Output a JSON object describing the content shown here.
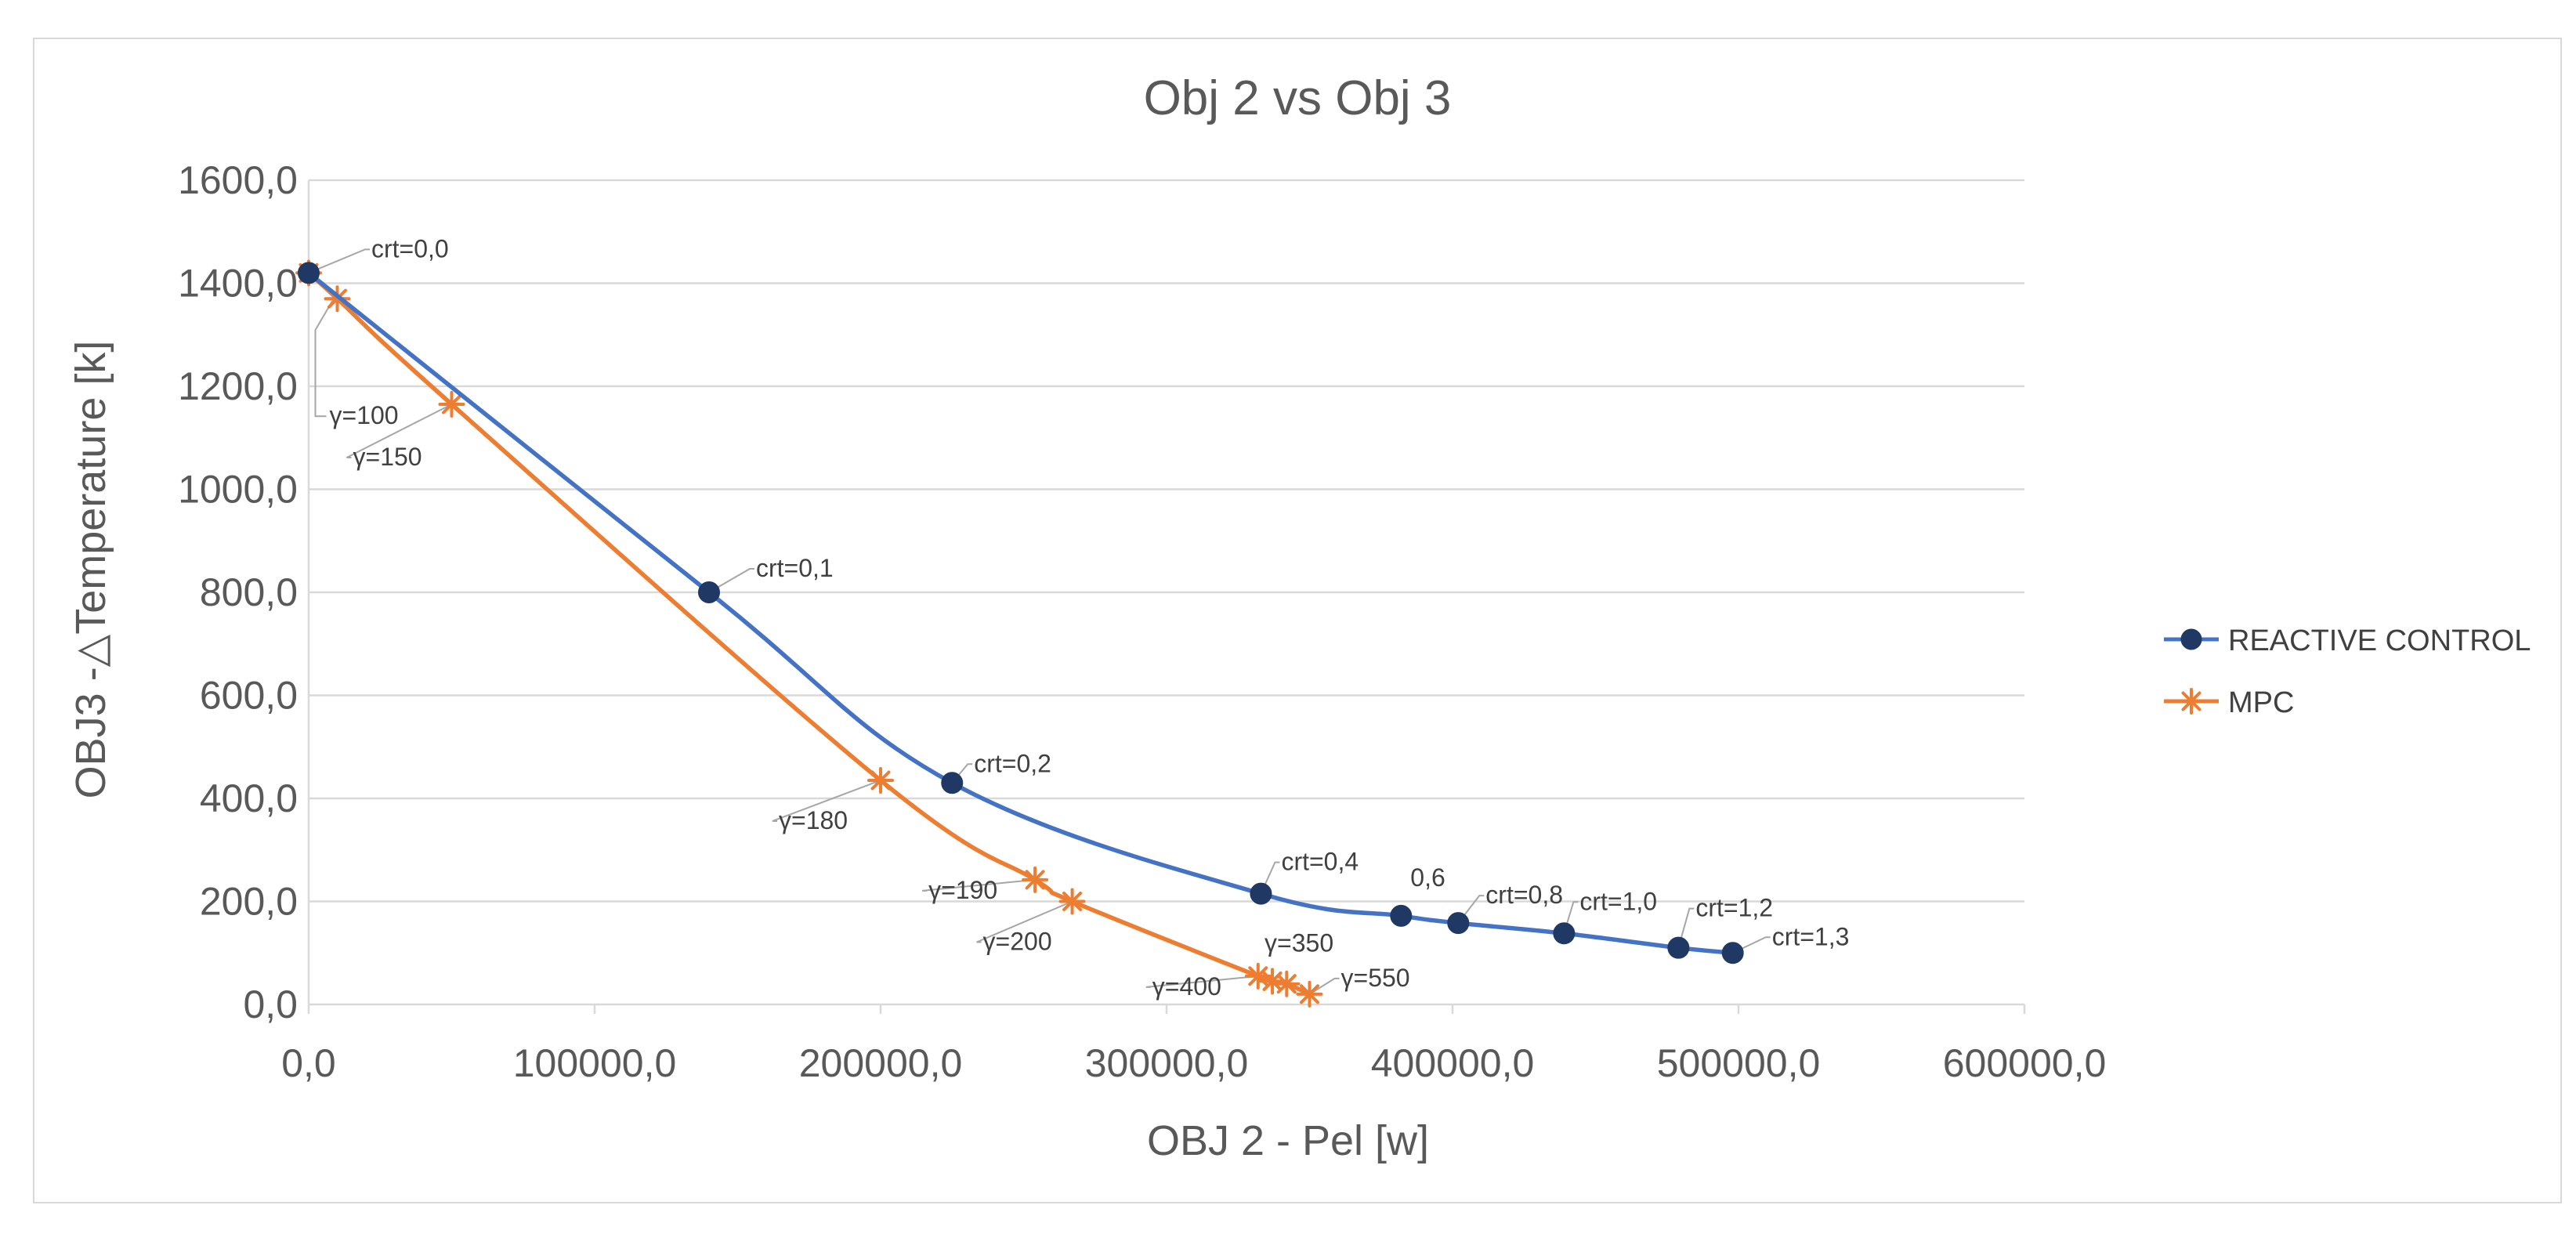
{
  "chart_data": {
    "type": "line",
    "title": "Obj 2 vs Obj 3",
    "xlabel": "OBJ 2 - Pel [w]",
    "ylabel": "OBJ3 -△Temperature [k]",
    "xlim": [
      0,
      600000
    ],
    "ylim": [
      0,
      1600
    ],
    "x_ticks": [
      "0,0",
      "100000,0",
      "200000,0",
      "300000,0",
      "400000,0",
      "500000,0",
      "600000,0"
    ],
    "y_ticks": [
      "0,0",
      "200,0",
      "400,0",
      "600,0",
      "800,0",
      "1000,0",
      "1200,0",
      "1400,0",
      "1600,0"
    ],
    "grid": true,
    "legend_position": "right",
    "series": [
      {
        "name": "REACTIVE CONTROL",
        "color": "#4472c4",
        "marker": "circle",
        "x": [
          0,
          140000,
          225000,
          333000,
          382000,
          402000,
          439000,
          479000,
          498000
        ],
        "y": [
          1420,
          800,
          430,
          215,
          172,
          158,
          138,
          110,
          100
        ],
        "labels": [
          "crt=0,0",
          "crt=0,1",
          "crt=0,2",
          "crt=0,4",
          "0,6",
          "crt=0,8",
          "crt=1,0",
          "crt=1,2",
          "crt=1,3"
        ]
      },
      {
        "name": "MPC",
        "color": "#ed7d31",
        "marker": "star",
        "x": [
          0,
          10000,
          50000,
          200000,
          254000,
          267000,
          332000,
          337000,
          342000,
          350000
        ],
        "y": [
          1420,
          1370,
          1165,
          435,
          242,
          200,
          55,
          45,
          40,
          20
        ],
        "labels": [
          "",
          "γ=100",
          "γ=150",
          "γ=180",
          "γ=190",
          "γ=200",
          "γ=400",
          "γ=350",
          "",
          "γ=550"
        ]
      }
    ]
  }
}
